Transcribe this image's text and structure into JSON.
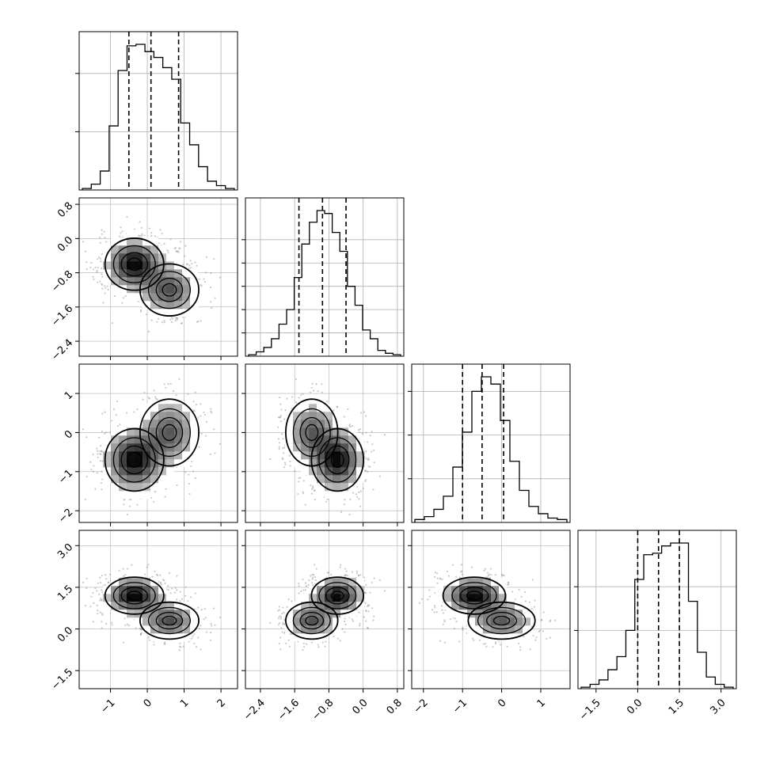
{
  "chart_data": {
    "type": "corner",
    "grid": true,
    "colors": {
      "line": "#000000",
      "grid": "#b0b0b0",
      "points": "#888888"
    },
    "variables": [
      {
        "range": [
          -1.85,
          2.45
        ],
        "ticks": [
          -1,
          0,
          1,
          2
        ],
        "tick_labels": [
          "−1",
          "0",
          "1",
          "2"
        ],
        "quantiles": [
          -0.5,
          0.1,
          0.85
        ],
        "hist": [
          0.01,
          0.04,
          0.13,
          0.44,
          0.82,
          0.99,
          1.0,
          0.95,
          0.91,
          0.84,
          0.76,
          0.46,
          0.31,
          0.16,
          0.06,
          0.03,
          0.01
        ],
        "hist_ticks": [
          0.4,
          0.8
        ]
      },
      {
        "range": [
          -2.75,
          0.95
        ],
        "ticks": [
          -2.4,
          -1.6,
          -0.8,
          0.0,
          0.8
        ],
        "tick_labels": [
          "−2.4",
          "−1.6",
          "−0.8",
          "0.0",
          "0.8"
        ],
        "quantiles": [
          -1.5,
          -0.95,
          -0.4
        ],
        "hist": [
          0.01,
          0.03,
          0.06,
          0.12,
          0.22,
          0.32,
          0.54,
          0.77,
          0.92,
          1.0,
          0.98,
          0.85,
          0.72,
          0.48,
          0.35,
          0.18,
          0.12,
          0.04,
          0.02,
          0.01
        ],
        "hist_ticks": [
          0.16,
          0.32,
          0.48,
          0.64,
          0.8
        ]
      },
      {
        "range": [
          -2.3,
          1.75
        ],
        "ticks": [
          -2,
          -1,
          0,
          1
        ],
        "tick_labels": [
          "−2",
          "−1",
          "0",
          "1"
        ],
        "quantiles": [
          -1.0,
          -0.5,
          0.05
        ],
        "hist": [
          0.02,
          0.04,
          0.09,
          0.18,
          0.38,
          0.62,
          0.9,
          1.0,
          0.95,
          0.7,
          0.42,
          0.22,
          0.11,
          0.06,
          0.03,
          0.02
        ],
        "hist_ticks": [
          0.3,
          0.6,
          0.9
        ]
      },
      {
        "range": [
          -2.15,
          3.55
        ],
        "ticks": [
          -1.5,
          0.0,
          1.5,
          3.0
        ],
        "tick_labels": [
          "−1.5",
          "0.0",
          "1.5",
          "3.0"
        ],
        "quantiles": [
          0.0,
          0.75,
          1.5
        ],
        "hist": [
          0.01,
          0.03,
          0.06,
          0.13,
          0.22,
          0.4,
          0.75,
          0.92,
          0.93,
          0.98,
          1.0,
          1.0,
          0.6,
          0.25,
          0.08,
          0.03,
          0.01
        ],
        "hist_ticks": [
          0.4,
          0.7
        ]
      }
    ],
    "modes": [
      {
        "weight": 0.6,
        "mean": [
          -0.35,
          -0.6,
          -0.7,
          1.2
        ],
        "sd": [
          0.42,
          0.32,
          0.42,
          0.35
        ]
      },
      {
        "weight": 0.4,
        "mean": [
          0.6,
          -1.2,
          0.0,
          0.3
        ],
        "sd": [
          0.42,
          0.32,
          0.45,
          0.35
        ]
      }
    ]
  }
}
